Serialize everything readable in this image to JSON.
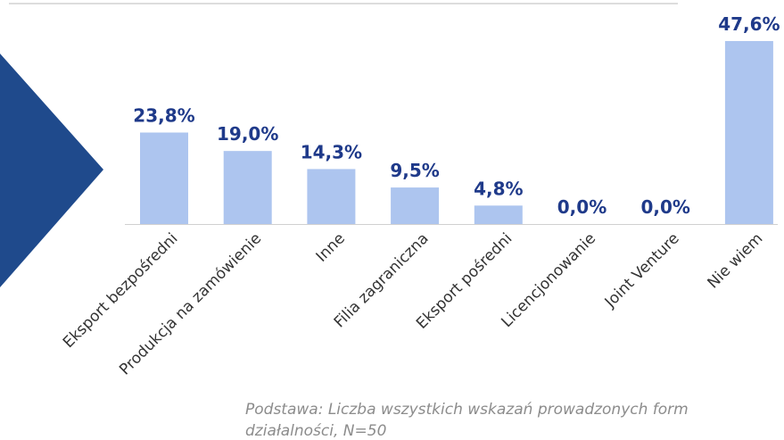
{
  "chart_data": {
    "type": "bar",
    "categories": [
      "Eksport bezpośredni",
      "Produkcja na zamówienie",
      "Inne",
      "Filia zagraniczna",
      "Eksport pośredni",
      "Licencjonowanie",
      "Joint Venture",
      "Nie wiem"
    ],
    "values": [
      23.8,
      19.0,
      14.3,
      9.5,
      4.8,
      0.0,
      0.0,
      47.6
    ],
    "value_labels": [
      "23,8%",
      "19,0%",
      "14,3%",
      "9,5%",
      "4,8%",
      "0,0%",
      "0,0%",
      "47,6%"
    ],
    "color": "#adc5ef",
    "label_color": "#1f3a8a",
    "note": "Podstawa: Liczba wszystkich wskazań prowadzonych form działalności, N=50"
  }
}
